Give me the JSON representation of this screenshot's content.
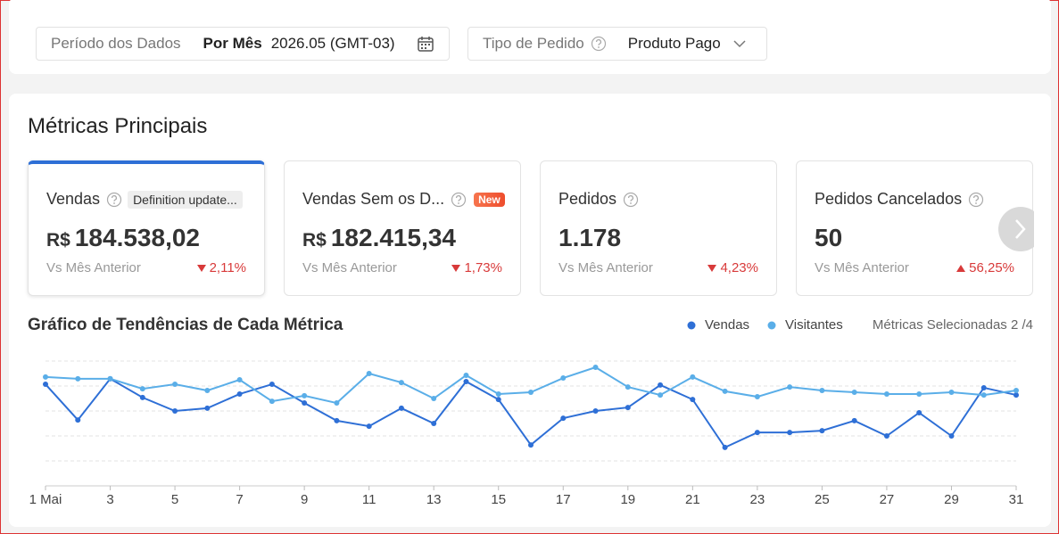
{
  "filters": {
    "period": {
      "label": "Período dos Dados",
      "mode": "Por Mês",
      "value": "2026.05 (GMT-03)"
    },
    "order_type": {
      "label": "Tipo de Pedido",
      "value": "Produto Pago"
    }
  },
  "section_title": "Métricas Principais",
  "metrics": [
    {
      "title": "Vendas",
      "tag": "Definition update...",
      "currency": "R$",
      "value": "184.538,02",
      "comparison": "Vs Mês Anterior",
      "change": "2,11%",
      "direction": "down",
      "selected": true
    },
    {
      "title": "Vendas Sem os D...",
      "new_tag": "New",
      "currency": "R$",
      "value": "182.415,34",
      "comparison": "Vs Mês Anterior",
      "change": "1,73%",
      "direction": "down",
      "selected": false
    },
    {
      "title": "Pedidos",
      "value": "1.178",
      "comparison": "Vs Mês Anterior",
      "change": "4,23%",
      "direction": "down",
      "selected": false
    },
    {
      "title": "Pedidos Cancelados",
      "value": "50",
      "comparison": "Vs Mês Anterior",
      "change": "56,25%",
      "direction": "up",
      "selected": false
    }
  ],
  "chart_data": {
    "type": "line",
    "title": "Gráfico de Tendências de Cada Métrica",
    "selected_metrics": "Métricas Selecionadas 2 /4",
    "x": [
      1,
      2,
      3,
      4,
      5,
      6,
      7,
      8,
      9,
      10,
      11,
      12,
      13,
      14,
      15,
      16,
      17,
      18,
      19,
      20,
      21,
      22,
      23,
      24,
      25,
      26,
      27,
      28,
      29,
      30,
      31
    ],
    "xlim": [
      1,
      31
    ],
    "xticks": [
      {
        "value": 1,
        "label": "1 Mai"
      },
      3,
      5,
      7,
      9,
      11,
      13,
      15,
      17,
      19,
      21,
      23,
      25,
      27,
      29,
      31
    ],
    "ylim": [
      0,
      5
    ],
    "yticks": [
      0,
      1,
      2,
      3,
      4,
      5
    ],
    "grid": true,
    "series": [
      {
        "name": "Vendas",
        "color": "#2e6fd6",
        "values": [
          4.07,
          2.64,
          4.29,
          3.54,
          3.0,
          3.11,
          3.68,
          4.07,
          3.32,
          2.61,
          2.39,
          3.11,
          2.5,
          4.18,
          3.46,
          1.64,
          2.71,
          3.0,
          3.14,
          4.04,
          3.46,
          1.54,
          2.14,
          2.14,
          2.21,
          2.61,
          2.0,
          2.93,
          2.0,
          3.93,
          3.64
        ]
      },
      {
        "name": "Visitantes",
        "color": "#5aaee8",
        "values": [
          4.36,
          4.29,
          4.29,
          3.89,
          4.07,
          3.82,
          4.25,
          3.39,
          3.61,
          3.32,
          4.5,
          4.14,
          3.5,
          4.43,
          3.68,
          3.75,
          4.32,
          4.75,
          3.96,
          3.64,
          4.36,
          3.79,
          3.57,
          3.96,
          3.82,
          3.75,
          3.68,
          3.68,
          3.75,
          3.64,
          3.82
        ]
      }
    ]
  }
}
